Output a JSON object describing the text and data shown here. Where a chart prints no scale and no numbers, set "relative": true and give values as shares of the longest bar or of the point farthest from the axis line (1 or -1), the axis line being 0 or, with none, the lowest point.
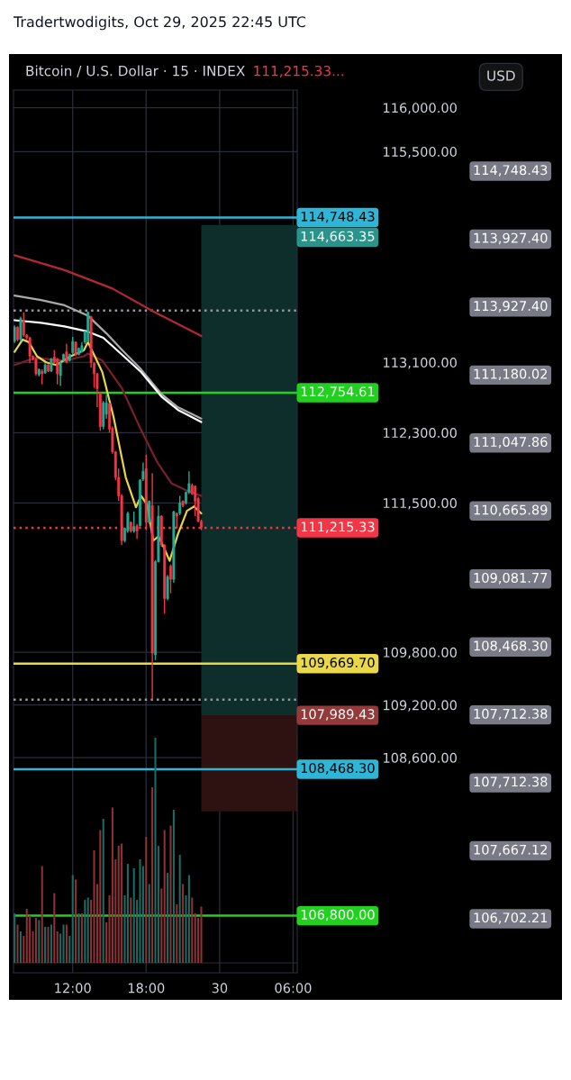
{
  "chart_data": [
    {
      "type": "candlestick",
      "title": "Bitcoin / U.S. Dollar · 15 · INDEX",
      "subtitle": "111,215.33...",
      "ylabel": "USD",
      "x": [
        "2025-10-29T07:15",
        "2025-10-29T07:30",
        "2025-10-29T07:45",
        "2025-10-29T08:00",
        "2025-10-29T08:15",
        "2025-10-29T08:30",
        "2025-10-29T08:45",
        "2025-10-29T09:00",
        "2025-10-29T09:15",
        "2025-10-29T09:30",
        "2025-10-29T09:45",
        "2025-10-29T10:00",
        "2025-10-29T10:15",
        "2025-10-29T10:30",
        "2025-10-29T10:45",
        "2025-10-29T11:00",
        "2025-10-29T11:15",
        "2025-10-29T11:30",
        "2025-10-29T11:45",
        "2025-10-29T12:00",
        "2025-10-29T12:15",
        "2025-10-29T12:30",
        "2025-10-29T12:45",
        "2025-10-29T13:00",
        "2025-10-29T13:15",
        "2025-10-29T13:30",
        "2025-10-29T13:45",
        "2025-10-29T14:00",
        "2025-10-29T14:15",
        "2025-10-29T14:30",
        "2025-10-29T14:45",
        "2025-10-29T15:00",
        "2025-10-29T15:15",
        "2025-10-29T15:30",
        "2025-10-29T15:45",
        "2025-10-29T16:00",
        "2025-10-29T16:15",
        "2025-10-29T16:30",
        "2025-10-29T16:45",
        "2025-10-29T17:00",
        "2025-10-29T17:15",
        "2025-10-29T17:30",
        "2025-10-29T17:45",
        "2025-10-29T18:00",
        "2025-10-29T18:15",
        "2025-10-29T18:30",
        "2025-10-29T18:45",
        "2025-10-29T19:00",
        "2025-10-29T19:15",
        "2025-10-29T19:30",
        "2025-10-29T19:45",
        "2025-10-29T20:00",
        "2025-10-29T20:15",
        "2025-10-29T20:30",
        "2025-10-29T20:45",
        "2025-10-29T21:00",
        "2025-10-29T21:15",
        "2025-10-29T21:30",
        "2025-10-29T21:45",
        "2025-10-29T22:00",
        "2025-10-29T22:15",
        "2025-10-29T22:30"
      ],
      "ohlc": [
        [
          113340,
          113520,
          113320,
          113500
        ],
        [
          113500,
          113510,
          113340,
          113360
        ],
        [
          113360,
          113620,
          113340,
          113600
        ],
        [
          113580,
          113670,
          113390,
          113410
        ],
        [
          113410,
          113420,
          113360,
          113380
        ],
        [
          113380,
          113390,
          113090,
          113170
        ],
        [
          113170,
          113180,
          113120,
          113140
        ],
        [
          113140,
          113150,
          112950,
          112970
        ],
        [
          112960,
          113030,
          112940,
          113020
        ],
        [
          113000,
          113020,
          112850,
          112970
        ],
        [
          112980,
          113090,
          112970,
          113070
        ],
        [
          113070,
          113080,
          112990,
          113000
        ],
        [
          113000,
          113150,
          112990,
          113140
        ],
        [
          113160,
          113240,
          113090,
          113100
        ],
        [
          113140,
          113150,
          112850,
          112970
        ],
        [
          112950,
          113120,
          112830,
          113100
        ],
        [
          113120,
          113200,
          113110,
          113190
        ],
        [
          113220,
          113310,
          113090,
          113100
        ],
        [
          113120,
          113200,
          113110,
          113190
        ],
        [
          113210,
          113390,
          113190,
          113340
        ],
        [
          113330,
          113340,
          113170,
          113190
        ],
        [
          113190,
          113270,
          113180,
          113260
        ],
        [
          113220,
          113330,
          113210,
          113290
        ],
        [
          113330,
          113460,
          113310,
          113450
        ],
        [
          113340,
          113680,
          113330,
          113670
        ],
        [
          113620,
          113630,
          113040,
          113100
        ],
        [
          113090,
          113100,
          112810,
          112970
        ],
        [
          112970,
          112980,
          112590,
          112800
        ],
        [
          112750,
          112760,
          112320,
          112370
        ],
        [
          112370,
          112660,
          112340,
          112640
        ],
        [
          112510,
          112730,
          112460,
          112640
        ],
        [
          112630,
          112640,
          112300,
          112340
        ],
        [
          112350,
          112370,
          112060,
          112080
        ],
        [
          112080,
          112090,
          111760,
          111790
        ],
        [
          111790,
          111890,
          111520,
          111580
        ],
        [
          111580,
          111600,
          111020,
          111070
        ],
        [
          111070,
          111220,
          111050,
          111210
        ],
        [
          111180,
          111400,
          111160,
          111380
        ],
        [
          111280,
          111290,
          111160,
          111180
        ],
        [
          111180,
          111400,
          111160,
          111230
        ],
        [
          111240,
          111260,
          111090,
          111180
        ],
        [
          111240,
          111770,
          111230,
          111760
        ],
        [
          111770,
          111960,
          111750,
          111860
        ],
        [
          111890,
          112050,
          111190,
          111280
        ],
        [
          111280,
          111530,
          111260,
          111520
        ],
        [
          111470,
          111840,
          109260,
          109790
        ],
        [
          109770,
          110850,
          109710,
          110830
        ],
        [
          110830,
          111470,
          110820,
          111350
        ],
        [
          111350,
          111360,
          111000,
          111020
        ],
        [
          111020,
          111030,
          110240,
          110410
        ],
        [
          110410,
          110680,
          110390,
          110660
        ],
        [
          110780,
          110800,
          110470,
          110630
        ],
        [
          110630,
          111410,
          110590,
          111400
        ],
        [
          111380,
          111390,
          111210,
          111350
        ],
        [
          111380,
          111580,
          111360,
          111500
        ],
        [
          111520,
          111530,
          111450,
          111470
        ],
        [
          111500,
          111630,
          111480,
          111620
        ],
        [
          111620,
          111860,
          111600,
          111720
        ],
        [
          111700,
          111720,
          111590,
          111600
        ],
        [
          111690,
          111700,
          111350,
          111520
        ],
        [
          111550,
          111570,
          111280,
          111290
        ],
        [
          111290,
          111310,
          111190,
          111215.33
        ]
      ],
      "colors": [
        "#22ab94",
        "#f23645",
        "#22ab94",
        "#f23645",
        "#f23645",
        "#f23645",
        "#f23645",
        "#f23645",
        "#22ab94",
        "#f23645",
        "#22ab94",
        "#f23645",
        "#22ab94",
        "#f23645",
        "#f23645",
        "#22ab94",
        "#22ab94",
        "#f23645",
        "#22ab94",
        "#22ab94",
        "#f23645",
        "#22ab94",
        "#22ab94",
        "#22ab94",
        "#22ab94",
        "#f23645",
        "#f23645",
        "#f23645",
        "#f23645",
        "#22ab94",
        "#22ab94",
        "#f23645",
        "#f23645",
        "#f23645",
        "#f23645",
        "#f23645",
        "#22ab94",
        "#22ab94",
        "#f23645",
        "#22ab94",
        "#f23645",
        "#22ab94",
        "#22ab94",
        "#f23645",
        "#22ab94",
        "#f23645",
        "#22ab94",
        "#22ab94",
        "#f23645",
        "#f23645",
        "#22ab94",
        "#f23645",
        "#22ab94",
        "#f23645",
        "#22ab94",
        "#f23645",
        "#22ab94",
        "#22ab94",
        "#f23645",
        "#f23645",
        "#f23645",
        "#f23645"
      ],
      "series": [
        {
          "type": "line",
          "color": "#b22833",
          "x": [
            "2025-10-29T07:15",
            "2025-10-29T11:20",
            "2025-10-29T15:15",
            "2025-10-29T18:35",
            "2025-10-29T22:30"
          ],
          "values": [
            114320,
            114150,
            113940,
            113680,
            113400
          ]
        },
        {
          "type": "line",
          "color": "#a9a9a9",
          "x": [
            "2025-10-29T07:15",
            "2025-10-29T09:25",
            "2025-10-29T11:20",
            "2025-10-29T13:15",
            "2025-10-29T14:45",
            "2025-10-29T16:10",
            "2025-10-29T17:35",
            "2025-10-29T19:15",
            "2025-10-29T20:35",
            "2025-10-29T22:30"
          ],
          "values": [
            113860,
            113810,
            113750,
            113630,
            113430,
            113220,
            113020,
            112740,
            112590,
            112460
          ]
        },
        {
          "type": "line",
          "color": "#ffffff",
          "x": [
            "2025-10-29T07:15",
            "2025-10-29T09:25",
            "2025-10-29T11:20",
            "2025-10-29T13:15",
            "2025-10-29T14:30",
            "2025-10-29T16:10",
            "2025-10-29T17:35",
            "2025-10-29T19:15",
            "2025-10-29T20:35",
            "2025-10-29T22:30"
          ],
          "values": [
            113580,
            113550,
            113510,
            113450,
            113380,
            113170,
            112990,
            112710,
            112560,
            112420
          ]
        },
        {
          "type": "line",
          "color": "#7a1f2b",
          "x": [
            "2025-10-29T07:15",
            "2025-10-29T08:55",
            "2025-10-29T11:20",
            "2025-10-29T12:55",
            "2025-10-29T13:15",
            "2025-10-29T14:25",
            "2025-10-29T16:00",
            "2025-10-29T17:35",
            "2025-10-29T18:55",
            "2025-10-29T20:05",
            "2025-10-29T21:20",
            "2025-10-29T22:30"
          ],
          "values": [
            113070,
            113150,
            113120,
            113170,
            113200,
            113120,
            112810,
            112330,
            111960,
            111720,
            111640,
            111580
          ]
        },
        {
          "type": "line",
          "color": "#e6d44a",
          "x": [
            "2025-10-29T07:15",
            "2025-10-29T07:55",
            "2025-10-29T08:25",
            "2025-10-29T09:05",
            "2025-10-29T09:50",
            "2025-10-29T10:40",
            "2025-10-29T11:50",
            "2025-10-29T12:55",
            "2025-10-29T13:15",
            "2025-10-29T14:25",
            "2025-10-29T15:20",
            "2025-10-29T16:20",
            "2025-10-29T17:10",
            "2025-10-29T17:35",
            "2025-10-29T18:05",
            "2025-10-29T18:35",
            "2025-10-29T19:00",
            "2025-10-29T19:25",
            "2025-10-29T19:55",
            "2025-10-29T20:35",
            "2025-10-29T21:20",
            "2025-10-29T21:55",
            "2025-10-29T22:30"
          ],
          "values": [
            113220,
            113360,
            113330,
            113170,
            113100,
            113070,
            113170,
            113240,
            113330,
            112990,
            112480,
            111790,
            111450,
            111580,
            111480,
            111070,
            111120,
            111000,
            110840,
            111140,
            111410,
            111460,
            111380
          ]
        }
      ],
      "xlim": [
        "2025-10-29T07:10",
        "2025-10-30T06:20"
      ],
      "xticks": [
        {
          "value": "2025-10-29T12:00",
          "label": "12:00"
        },
        {
          "value": "2025-10-29T18:00",
          "label": "18:00"
        },
        {
          "value": "2025-10-30T00:00",
          "label": "30"
        },
        {
          "value": "2025-10-30T06:00",
          "label": "06:00"
        }
      ],
      "ylim": [
        106150,
        116200
      ],
      "yticks": [
        {
          "value": 116000,
          "label": "116,000.00"
        },
        {
          "value": 115500,
          "label": "115,500.00"
        },
        {
          "value": 113100,
          "label": "113,100.00"
        },
        {
          "value": 112300,
          "label": "112,300.00"
        },
        {
          "value": 111500,
          "label": "111,500.00"
        },
        {
          "value": 109800,
          "label": "109,800.00"
        },
        {
          "value": 109200,
          "label": "109,200.00"
        },
        {
          "value": 108600,
          "label": "108,600.00"
        }
      ],
      "grid": true,
      "ref_lines": [
        {
          "axis": "y",
          "value": 114748.43,
          "label": "114,748.43",
          "color": "#2fb5d6",
          "line_style": "solid"
        },
        {
          "axis": "y",
          "value": 112754.61,
          "label": "112,754.61",
          "color": "#22d11f",
          "line_style": "solid"
        },
        {
          "axis": "y",
          "value": 111215.33,
          "label": "111,215.33",
          "color": "#f23645",
          "line_style": "dotted"
        },
        {
          "axis": "y",
          "value": 109669.7,
          "label": "109,669.70",
          "color": "#e8d84a",
          "line_style": "solid"
        },
        {
          "axis": "y",
          "value": 108468.3,
          "label": "108,468.30",
          "color": "#2fb5d6",
          "line_style": "solid"
        },
        {
          "axis": "y",
          "value": 106800,
          "label": "106,800.00",
          "color": "#22d11f",
          "line_style": "solid"
        },
        {
          "axis": "y",
          "value": 113690,
          "label": null,
          "color": "#9598a1",
          "line_style": "dotted"
        },
        {
          "axis": "y",
          "value": 109260,
          "label": null,
          "color": "#9598a1",
          "line_style": "dotted"
        }
      ],
      "bands": [
        {
          "axis": "y",
          "from": 109081.77,
          "to": 114663.35,
          "label": "114,663.35",
          "color": "#0d2e2b"
        },
        {
          "axis": "y",
          "from": 107989.43,
          "to": 109081.77,
          "label": "107,989.43",
          "color": "#2e1212"
        }
      ],
      "annotations": [
        "Tradertwodigits, Oct 29, 2025 22:45 UTC",
        "114,748.43",
        "113,927.40",
        "113,927.40",
        "111,180.02",
        "111,047.86",
        "110,665.89",
        "109,081.77",
        "108,468.30",
        "107,712.38",
        "107,712.38",
        "107,667.12",
        "106,702.21"
      ]
    },
    {
      "type": "bar",
      "relative": true,
      "categories": [
        null,
        null,
        null,
        null,
        null,
        null,
        null,
        null,
        null,
        null,
        null,
        null,
        null,
        null,
        null,
        null,
        null,
        null,
        null,
        null,
        null,
        null,
        null,
        null,
        null,
        null,
        null,
        null,
        null,
        null,
        null,
        null,
        null,
        null,
        null,
        null,
        null,
        null,
        null,
        null,
        null,
        null,
        null,
        null,
        null,
        null,
        null,
        null,
        null,
        null,
        null,
        null,
        null,
        null,
        null,
        null,
        null,
        null,
        null,
        null,
        null,
        null
      ],
      "values": [
        0.22,
        0.17,
        0.14,
        0.12,
        0.24,
        0.21,
        0.14,
        0.2,
        0.19,
        0.43,
        0.16,
        0.16,
        0.17,
        0.31,
        0.14,
        0.13,
        0.17,
        0.17,
        0.12,
        0.39,
        0.37,
        0.22,
        0.22,
        0.28,
        0.29,
        0.28,
        0.5,
        0.35,
        0.59,
        0.64,
        0.18,
        0.3,
        0.69,
        0.46,
        0.52,
        0.53,
        0.3,
        0.44,
        0.29,
        0.42,
        0.28,
        0.46,
        0.43,
        0.56,
        0.35,
        0.78,
        1,
        0.52,
        0.33,
        0.59,
        0.4,
        0.61,
        0.68,
        0.26,
        0.48,
        0.35,
        0.3,
        0.39,
        0.29,
        0.22,
        0.2,
        0.25
      ],
      "colors": [
        "#1c6b64",
        "#8f3236",
        "#1c6b64",
        "#8f3236",
        "#8f3236",
        "#8f3236",
        "#8f3236",
        "#8f3236",
        "#1c6b64",
        "#8f3236",
        "#1c6b64",
        "#8f3236",
        "#1c6b64",
        "#8f3236",
        "#8f3236",
        "#1c6b64",
        "#1c6b64",
        "#8f3236",
        "#1c6b64",
        "#1c6b64",
        "#8f3236",
        "#1c6b64",
        "#8f3236",
        "#1c6b64",
        "#1c6b64",
        "#8f3236",
        "#8f3236",
        "#8f3236",
        "#8f3236",
        "#1c6b64",
        "#8f3236",
        "#8f3236",
        "#8f3236",
        "#8f3236",
        "#8f3236",
        "#8f3236",
        "#1c6b64",
        "#1c6b64",
        "#8f3236",
        "#1c6b64",
        "#1c6b64",
        "#1c6b64",
        "#1c6b64",
        "#8f3236",
        "#1c6b64",
        "#8f3236",
        "#1c6b64",
        "#1c6b64",
        "#8f3236",
        "#8f3236",
        "#1c6b64",
        "#8f3236",
        "#1c6b64",
        "#8f3236",
        "#1c6b64",
        "#8f3236",
        "#1c6b64",
        "#1c6b64",
        "#8f3236",
        "#8f3236",
        "#8f3236",
        "#8f3236"
      ]
    }
  ]
}
